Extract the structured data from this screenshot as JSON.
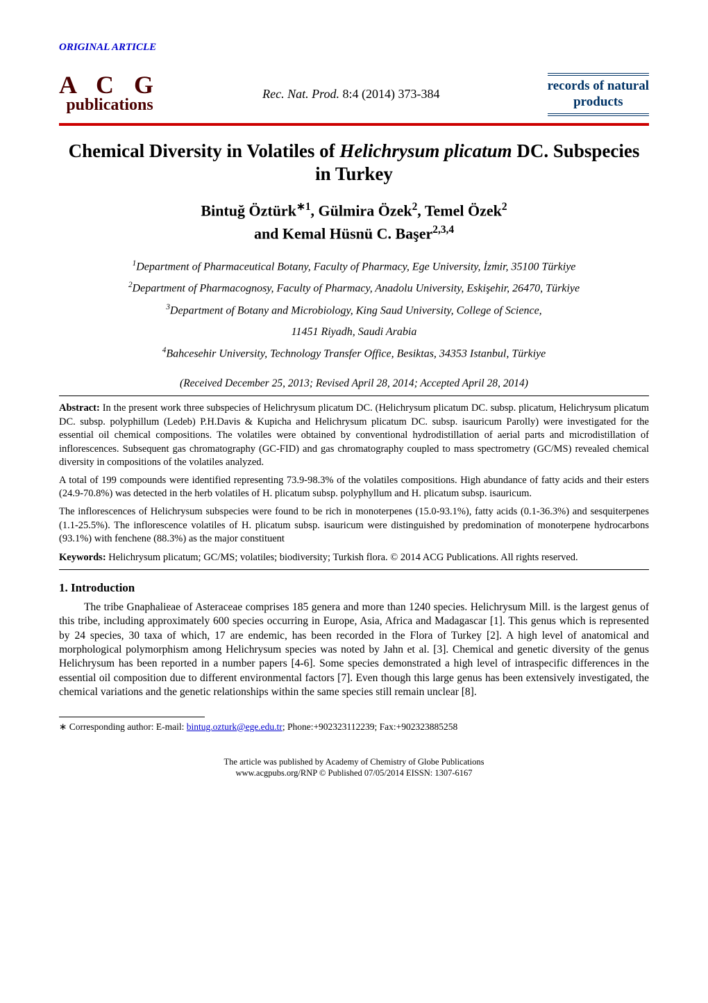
{
  "header": {
    "label": "ORIGINAL ARTICLE"
  },
  "logo": {
    "top": "A C G",
    "bottom": "publications"
  },
  "citation": {
    "journal_abbr": "Rec. Nat. Prod",
    "vol_issue": "8:4 (2014) 373-384"
  },
  "journal_box": {
    "line1": "records of natural",
    "line2": "products"
  },
  "title": {
    "prefix": "Chemical Diversity in Volatiles of ",
    "species": "Helichrysum plicatum",
    "suffix": " DC. Subspecies in Turkey"
  },
  "authors": {
    "line1_parts": [
      {
        "name": "Bintuğ Öztürk",
        "marks": "∗1"
      },
      {
        "name": "Gülmira Özek",
        "marks": "2"
      },
      {
        "name": "Temel Özek",
        "marks": "2"
      }
    ],
    "line2_prefix": "and ",
    "line2_author": {
      "name": "Kemal Hüsnü C. Başer",
      "marks": "2,3,4"
    }
  },
  "affiliations": [
    "Department of Pharmaceutical Botany, Faculty of Pharmacy, Ege University, İzmir, 35100 Türkiye",
    "Department of Pharmacognosy, Faculty of Pharmacy, Anadolu University, Eskişehir, 26470, Türkiye",
    "Department of Botany and Microbiology, King Saud University, College of Science,",
    "11451 Riyadh, Saudi Arabia",
    "Bahcesehir University, Technology Transfer Office, Besiktas, 34353 Istanbul, Türkiye"
  ],
  "affil_sup": [
    "1",
    "2",
    "3",
    "",
    "4"
  ],
  "dates": "(Received December 25, 2013; Revised April 28, 2014; Accepted April 28, 2014)",
  "abstract": {
    "label": "Abstract:",
    "p1": " In the present work three subspecies of Helichrysum plicatum DC. (Helichrysum plicatum DC. subsp. plicatum, Helichrysum plicatum DC. subsp. polyphillum (Ledeb) P.H.Davis & Kupicha and Helichrysum plicatum DC. subsp. isauricum Parolly) were investigated for the essential oil chemical compositions. The volatiles were obtained by conventional hydrodistillation of aerial parts and microdistillation of inflorescences. Subsequent gas chromatography (GC-FID) and gas chromatography coupled to mass spectrometry (GC/MS) revealed chemical diversity in compositions of the volatiles analyzed.",
    "p2": "A total of 199 compounds were identified representing 73.9-98.3% of the volatiles compositions. High abundance of fatty acids and their esters (24.9-70.8%) was detected in the herb volatiles of H. plicatum subsp. polyphyllum and H. plicatum subsp. isauricum.",
    "p3": "The inflorescences of Helichrysum subspecies were found to be rich in monoterpenes (15.0-93.1%), fatty acids (0.1-36.3%) and sesquiterpenes (1.1-25.5%). The inflorescence volatiles of H. plicatum subsp. isauricum were distinguished by predomination of monoterpene hydrocarbons (93.1%) with fenchene (88.3%) as the major constituent"
  },
  "keywords": {
    "label": "Keywords:",
    "text": " Helichrysum plicatum; GC/MS; volatiles; biodiversity; Turkish flora. © 2014 ACG Publications. All rights reserved."
  },
  "intro_heading": "1. Introduction",
  "intro_para": "The tribe Gnaphalieae of Asteraceae comprises 185 genera and more than 1240 species. Helichrysum Mill. is the largest genus of this tribe, including approximately 600 species occurring in Europe, Asia, Africa and Madagascar [1]. This genus which is represented by 24 species, 30 taxa of which, 17 are endemic, has been recorded in the Flora of Turkey [2]. A high level of anatomical and morphological polymorphism among Helichrysum species was noted by Jahn et al. [3]. Chemical and genetic diversity of the genus Helichrysum has been reported in a number papers [4-6]. Some species demonstrated a high level of intraspecific differences in the essential oil composition due to different environmental factors [7]. Even though this large genus has been extensively investigated, the chemical variations and the genetic relationships within the same species still remain unclear [8].",
  "footnote": {
    "mark": "∗",
    "prefix": " Corresponding author: E-mail: ",
    "email": "bintug.ozturk@ege.edu.tr",
    "suffix": "; Phone:+902323112239; Fax:+902323885258"
  },
  "bottom": {
    "line1": "The article was published by Academy of Chemistry of Globe Publications",
    "line2": "www.acgpubs.org/RNP © Published 07/05/2014 EISSN: 1307-6167"
  },
  "colors": {
    "header_label": "#0000cc",
    "logo": "#4a0000",
    "journal": "#003366",
    "rule": "#cc0000",
    "link": "#0000cc",
    "background": "#ffffff",
    "text": "#000000"
  }
}
